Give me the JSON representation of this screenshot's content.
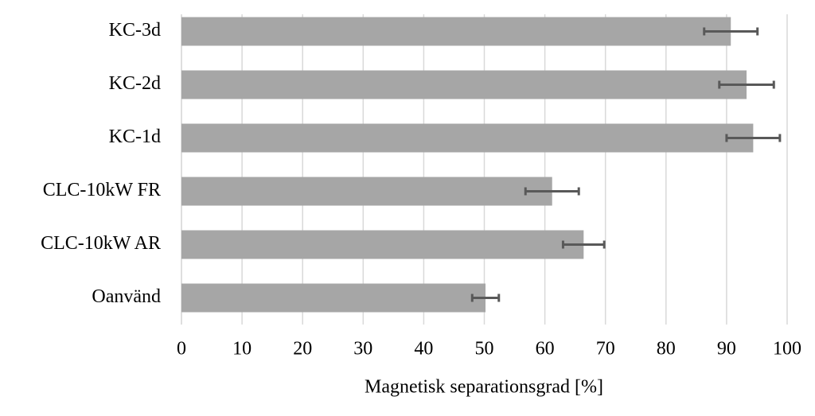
{
  "chart_data": {
    "type": "barh",
    "categories": [
      "KC-3d",
      "KC-2d",
      "KC-1d",
      "CLC-10kW FR",
      "CLC-10kW AR",
      "Oanvänd"
    ],
    "values": [
      90.7,
      93.3,
      94.4,
      61.2,
      66.4,
      50.2
    ],
    "errors": [
      4.4,
      4.5,
      4.4,
      4.4,
      3.4,
      2.2
    ],
    "color": "#a6a6a6",
    "error_color": "#595959",
    "xlabel": "Magnetisk separationsgrad [%]",
    "xlim": [
      0,
      100
    ],
    "xticks": [
      0,
      10,
      20,
      30,
      40,
      50,
      60,
      70,
      80,
      90,
      100
    ],
    "grid": true
  }
}
